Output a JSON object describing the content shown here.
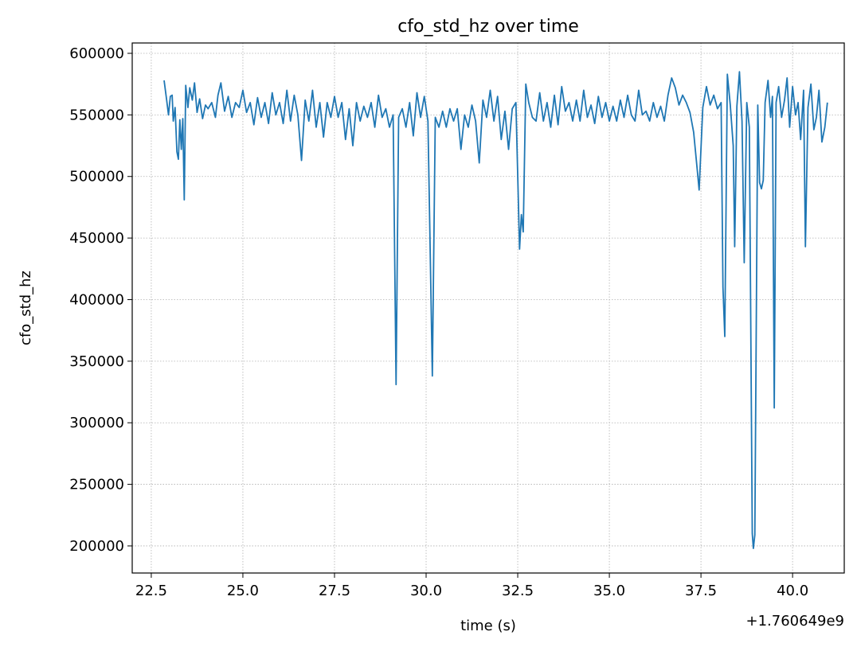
{
  "chart_data": {
    "type": "line",
    "title": "cfo_std_hz over time",
    "xlabel": "time (s)",
    "ylabel": "cfo_std_hz",
    "x_offset_label": "+1.760649e9",
    "color": "#1f77b4",
    "grid": true,
    "xlim": [
      21.98,
      41.41
    ],
    "ylim": [
      178000,
      608400
    ],
    "xticks": [
      22.5,
      {
        "value": 25,
        "label": "25.0"
      },
      27.5,
      {
        "value": 30,
        "label": "30.0"
      },
      32.5,
      {
        "value": 35,
        "label": "35.0"
      },
      37.5,
      {
        "value": 40,
        "label": "40.0"
      }
    ],
    "yticks": [
      200000,
      250000,
      300000,
      350000,
      400000,
      450000,
      500000,
      550000,
      600000
    ],
    "x": [
      22.85,
      22.92,
      22.97,
      23.02,
      23.07,
      23.1,
      23.15,
      23.2,
      23.24,
      23.28,
      23.32,
      23.36,
      23.4,
      23.44,
      23.5,
      23.55,
      23.62,
      23.68,
      23.75,
      23.82,
      23.9,
      23.98,
      24.05,
      24.15,
      24.25,
      24.32,
      24.4,
      24.5,
      24.6,
      24.7,
      24.8,
      24.9,
      25.0,
      25.1,
      25.2,
      25.3,
      25.4,
      25.5,
      25.6,
      25.7,
      25.8,
      25.9,
      26.0,
      26.1,
      26.2,
      26.3,
      26.4,
      26.5,
      26.6,
      26.7,
      26.8,
      26.9,
      27.0,
      27.1,
      27.2,
      27.3,
      27.4,
      27.5,
      27.6,
      27.7,
      27.8,
      27.9,
      28.0,
      28.1,
      28.2,
      28.3,
      28.4,
      28.5,
      28.6,
      28.7,
      28.8,
      28.9,
      29.0,
      29.1,
      29.18,
      29.25,
      29.35,
      29.45,
      29.55,
      29.65,
      29.75,
      29.85,
      29.95,
      30.05,
      30.17,
      30.25,
      30.35,
      30.45,
      30.55,
      30.65,
      30.75,
      30.85,
      30.95,
      31.05,
      31.15,
      31.25,
      31.35,
      31.45,
      31.55,
      31.65,
      31.75,
      31.85,
      31.95,
      32.05,
      32.15,
      32.25,
      32.35,
      32.45,
      32.55,
      32.6,
      32.65,
      32.72,
      32.8,
      32.9,
      33.0,
      33.1,
      33.2,
      33.3,
      33.4,
      33.5,
      33.6,
      33.7,
      33.8,
      33.9,
      34.0,
      34.1,
      34.2,
      34.3,
      34.4,
      34.5,
      34.6,
      34.7,
      34.8,
      34.9,
      35.0,
      35.1,
      35.2,
      35.3,
      35.4,
      35.5,
      35.6,
      35.7,
      35.8,
      35.9,
      36.0,
      36.1,
      36.2,
      36.3,
      36.4,
      36.5,
      36.6,
      36.7,
      36.8,
      36.9,
      37.0,
      37.1,
      37.2,
      37.3,
      37.4,
      37.45,
      37.55,
      37.65,
      37.75,
      37.85,
      37.95,
      38.05,
      38.1,
      38.15,
      38.22,
      38.3,
      38.38,
      38.42,
      38.48,
      38.55,
      38.62,
      38.68,
      38.75,
      38.82,
      38.9,
      38.93,
      38.97,
      39.05,
      39.1,
      39.15,
      39.2,
      39.25,
      39.33,
      39.4,
      39.45,
      39.5,
      39.55,
      39.62,
      39.7,
      39.78,
      39.85,
      39.92,
      40.0,
      40.08,
      40.15,
      40.22,
      40.3,
      40.35,
      40.42,
      40.5,
      40.58,
      40.65,
      40.72,
      40.8,
      40.88,
      40.95
    ],
    "values": [
      578000,
      562000,
      550000,
      565000,
      566000,
      545000,
      556000,
      520000,
      514000,
      546000,
      522000,
      547000,
      481000,
      574000,
      556000,
      572000,
      562000,
      576000,
      552000,
      563000,
      547000,
      558000,
      555000,
      560000,
      548000,
      566000,
      576000,
      553000,
      565000,
      548000,
      560000,
      556000,
      570000,
      552000,
      560000,
      542000,
      564000,
      548000,
      560000,
      543000,
      568000,
      550000,
      560000,
      543000,
      570000,
      545000,
      566000,
      550000,
      513000,
      562000,
      545000,
      570000,
      540000,
      560000,
      532000,
      560000,
      548000,
      565000,
      548000,
      560000,
      530000,
      555000,
      525000,
      560000,
      545000,
      557000,
      548000,
      560000,
      540000,
      566000,
      548000,
      555000,
      540000,
      550000,
      331000,
      548000,
      555000,
      540000,
      560000,
      533000,
      568000,
      548000,
      565000,
      545000,
      338000,
      548000,
      540000,
      553000,
      540000,
      555000,
      545000,
      555000,
      522000,
      550000,
      540000,
      558000,
      545000,
      511000,
      562000,
      548000,
      570000,
      545000,
      565000,
      530000,
      553000,
      522000,
      555000,
      560000,
      441000,
      469000,
      455000,
      575000,
      560000,
      548000,
      545000,
      568000,
      545000,
      560000,
      540000,
      566000,
      542000,
      573000,
      553000,
      560000,
      545000,
      562000,
      545000,
      570000,
      548000,
      558000,
      543000,
      565000,
      548000,
      560000,
      545000,
      557000,
      545000,
      562000,
      548000,
      566000,
      550000,
      545000,
      570000,
      550000,
      553000,
      545000,
      560000,
      548000,
      557000,
      545000,
      566000,
      580000,
      572000,
      558000,
      566000,
      560000,
      552000,
      536000,
      505000,
      489000,
      556000,
      573000,
      558000,
      566000,
      555000,
      560000,
      410000,
      370000,
      583000,
      558000,
      525000,
      443000,
      557000,
      585000,
      545000,
      430000,
      560000,
      540000,
      210000,
      198000,
      209000,
      558000,
      495000,
      490000,
      497000,
      560000,
      578000,
      548000,
      565000,
      312000,
      560000,
      573000,
      548000,
      562000,
      580000,
      540000,
      573000,
      550000,
      560000,
      530000,
      570000,
      443000,
      556000,
      575000,
      538000,
      548000,
      570000,
      528000,
      540000,
      560000
    ]
  }
}
